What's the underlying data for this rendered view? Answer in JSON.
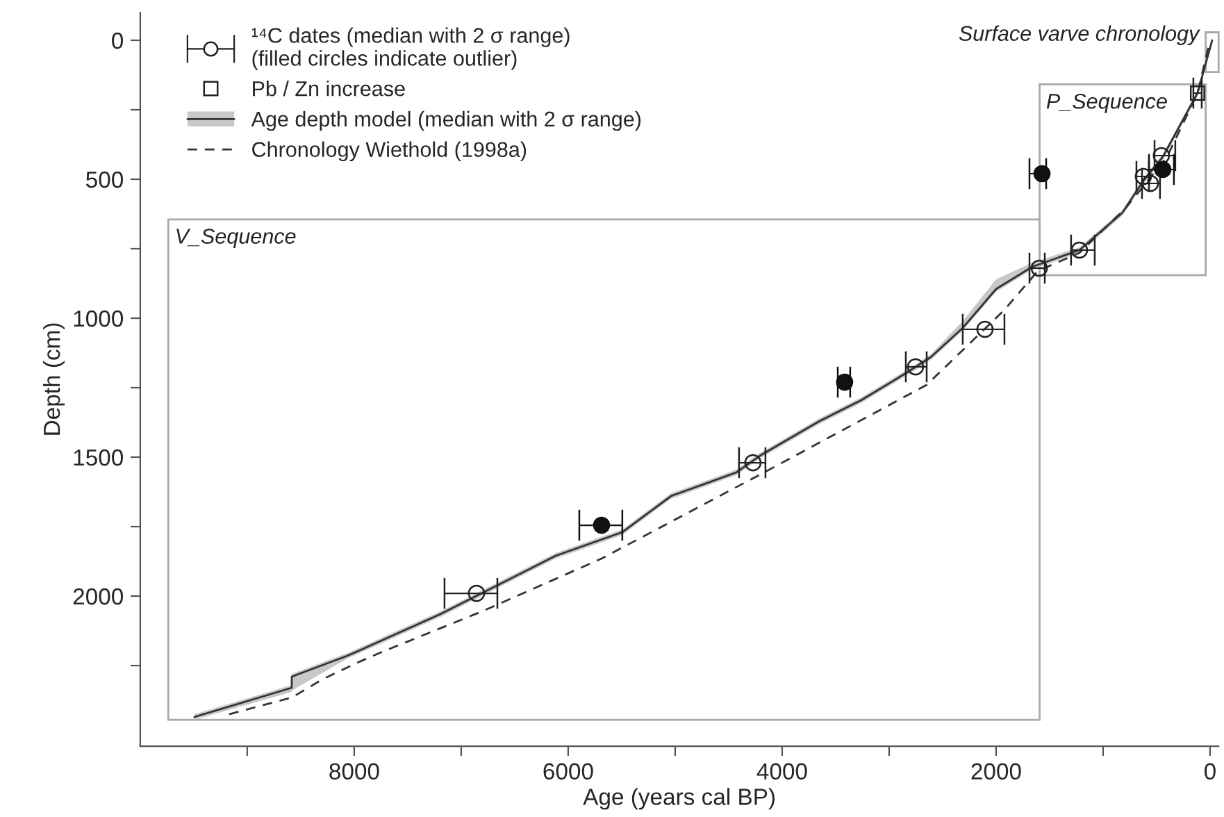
{
  "chart_data": {
    "type": "scatter",
    "xlabel": "Age (years cal BP)",
    "ylabel": "Depth (cm)",
    "xlim": [
      10000,
      -80
    ],
    "ylim": [
      2540,
      -100
    ],
    "xticks": [
      {
        "value": 9000,
        "label": null
      },
      8000,
      {
        "value": 7000,
        "label": null
      },
      6000,
      {
        "value": 5000,
        "label": null
      },
      4000,
      {
        "value": 3000,
        "label": null
      },
      2000,
      {
        "value": 1000,
        "label": null
      },
      0
    ],
    "yticks": [
      0,
      {
        "value": 250,
        "label": null
      },
      500,
      {
        "value": 750,
        "label": null
      },
      1000,
      {
        "value": 1250,
        "label": null
      },
      1500,
      {
        "value": 1750,
        "label": null
      },
      2000,
      {
        "value": 2250,
        "label": null
      }
    ],
    "grid": false,
    "legend": "top left",
    "series": [
      {
        "name": "¹⁴C dates (median with 2 σ range)\n(filled circles indicate outlier)",
        "color": "#222222",
        "marker": "circle",
        "x": [
          6857,
          4273,
          2753,
          2104,
          1597,
          1221,
          623,
          558,
          455
        ],
        "values": [
          1990,
          1520,
          1175,
          1040,
          820,
          755,
          490,
          515,
          415
        ],
        "xerrors": [
          [
            6662,
            7156
          ],
          [
            4156,
            4403
          ],
          [
            2649,
            2844
          ],
          [
            1922,
            2312
          ],
          [
            1545,
            1688
          ],
          [
            1078,
            1299
          ],
          [
            571,
            688
          ],
          [
            468,
            636
          ],
          [
            325,
            519
          ]
        ]
      },
      {
        "color": "#111111",
        "marker": "circle",
        "x": [
          5688,
          3416,
          1571,
          442
        ],
        "values": [
          1745,
          1230,
          480,
          465
        ],
        "xerrors": [
          [
            5494,
            5896
          ],
          [
            3364,
            3480
          ],
          [
            1532,
            1688
          ],
          [
            338,
            571
          ]
        ]
      },
      {
        "name": "Pb / Zn increase",
        "color": "#222222",
        "marker": "square",
        "x": [
          117
        ],
        "values": [
          190
        ],
        "xerrors": [
          [
            78,
            156
          ]
        ]
      },
      {
        "type": "line",
        "name": "Age depth model (median with 2 σ range)",
        "color": "#333333",
        "line_style": "solid",
        "x": [
          9494,
          8584,
          8584,
          8065,
          7195,
          6117,
          5494,
          5039,
          4429,
          4208,
          3649,
          3260,
          2831,
          2610,
          2312,
          2000,
          1662,
          1221,
          818,
          623,
          442,
          117,
          -20
        ],
        "values": [
          2435,
          2330,
          2290,
          2215,
          2065,
          1855,
          1770,
          1640,
          1555,
          1495,
          1370,
          1295,
          1195,
          1140,
          1035,
          895,
          815,
          755,
          620,
          505,
          420,
          190,
          0
        ],
        "lower": [
          2425,
          2320,
          2280,
          2205,
          2055,
          1845,
          1760,
          1630,
          1545,
          1485,
          1360,
          1285,
          1185,
          1130,
          1010,
          860,
          800,
          745,
          610,
          495,
          410,
          180,
          -5
        ],
        "upper": [
          2445,
          2345,
          2340,
          2225,
          2075,
          1865,
          1780,
          1650,
          1565,
          1505,
          1380,
          1305,
          1205,
          1150,
          1045,
          905,
          825,
          765,
          630,
          515,
          430,
          200,
          5
        ]
      },
      {
        "type": "line",
        "name": "Chronology Wiethold (1998a)",
        "color": "#333333",
        "line_style": "dashed",
        "x": [
          9169,
          8584,
          8299,
          7974,
          7766,
          6805,
          5688,
          4169,
          2649,
          1922,
          1610,
          1221,
          792,
          403,
          117,
          0
        ],
        "values": [
          2425,
          2365,
          2300,
          2240,
          2205,
          2055,
          1865,
          1555,
          1240,
          970,
          830,
          765,
          605,
          420,
          190,
          0
        ]
      }
    ],
    "annotations": [
      "V_Sequence",
      "P_Sequence",
      "Surface varve chronology"
    ]
  }
}
